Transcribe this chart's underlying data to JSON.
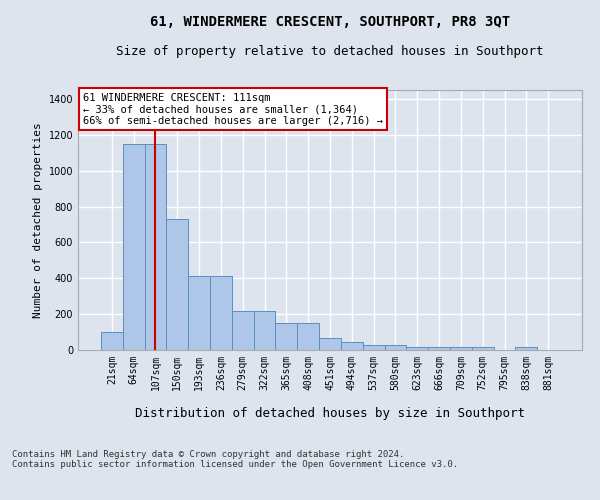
{
  "title": "61, WINDERMERE CRESCENT, SOUTHPORT, PR8 3QT",
  "subtitle": "Size of property relative to detached houses in Southport",
  "xlabel": "Distribution of detached houses by size in Southport",
  "ylabel": "Number of detached properties",
  "categories": [
    "21sqm",
    "64sqm",
    "107sqm",
    "150sqm",
    "193sqm",
    "236sqm",
    "279sqm",
    "322sqm",
    "365sqm",
    "408sqm",
    "451sqm",
    "494sqm",
    "537sqm",
    "580sqm",
    "623sqm",
    "666sqm",
    "709sqm",
    "752sqm",
    "795sqm",
    "838sqm",
    "881sqm"
  ],
  "values": [
    100,
    1150,
    1150,
    730,
    415,
    415,
    215,
    215,
    150,
    150,
    68,
    45,
    28,
    28,
    18,
    14,
    14,
    14,
    0,
    14,
    0
  ],
  "bar_color": "#aec6e8",
  "bar_edge_color": "#5a8fc0",
  "vline_x_index": 2,
  "vline_color": "#cc0000",
  "annotation_text": "61 WINDERMERE CRESCENT: 111sqm\n← 33% of detached houses are smaller (1,364)\n66% of semi-detached houses are larger (2,716) →",
  "annotation_box_color": "#ffffff",
  "annotation_box_edge": "#cc0000",
  "ylim": [
    0,
    1450
  ],
  "yticks": [
    0,
    200,
    400,
    600,
    800,
    1000,
    1200,
    1400
  ],
  "footer": "Contains HM Land Registry data © Crown copyright and database right 2024.\nContains public sector information licensed under the Open Government Licence v3.0.",
  "bg_color": "#dde4ee",
  "plot_bg_color": "#dde4ee",
  "grid_color": "#ffffff",
  "title_fontsize": 10,
  "subtitle_fontsize": 9,
  "xlabel_fontsize": 9,
  "ylabel_fontsize": 8,
  "tick_fontsize": 7,
  "annot_fontsize": 7.5,
  "footer_fontsize": 6.5
}
